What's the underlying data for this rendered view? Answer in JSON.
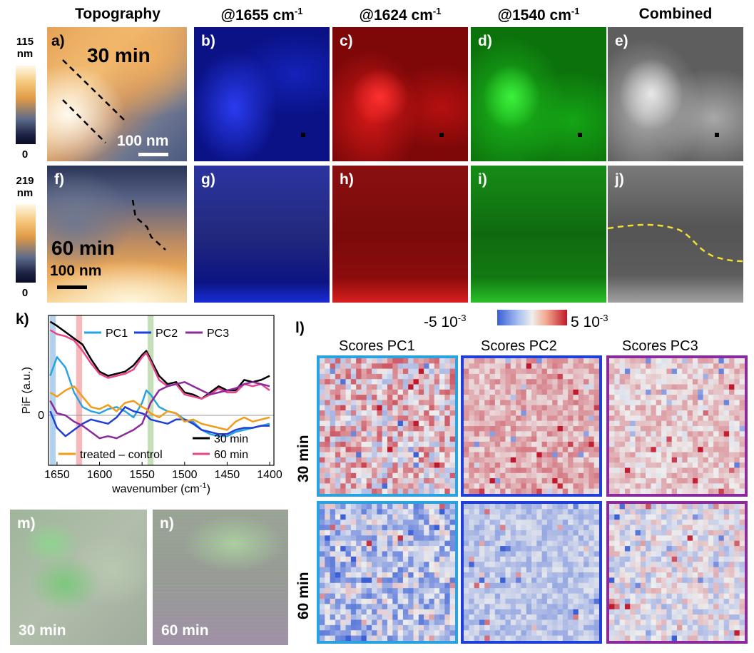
{
  "headers": {
    "topography": "Topography",
    "b1655": "@1655 cm",
    "b1624": "@1624 cm",
    "b1540": "@1540 cm",
    "sup": "-1",
    "combined": "Combined"
  },
  "colorbars": {
    "top": {
      "max": "115",
      "unit": "nm",
      "min": "0"
    },
    "bottom": {
      "max": "219",
      "unit": "nm",
      "min": "0"
    }
  },
  "panels": {
    "a": "a)",
    "b": "b)",
    "c": "c)",
    "d": "d)",
    "e": "e)",
    "f": "f)",
    "g": "g)",
    "h": "h)",
    "i": "i)",
    "j": "j)",
    "k": "k)",
    "l": "l)",
    "m": "m)",
    "n": "n)"
  },
  "topo_a": {
    "time": "30 min",
    "scale": "100 nm"
  },
  "topo_f": {
    "time": "60 min",
    "scale": "100 nm"
  },
  "photos": {
    "m_time": "30 min",
    "n_time": "60 min"
  },
  "scores_colorbar": {
    "min": "-5 10",
    "max": "5 10",
    "exp": "-3",
    "min_color": "#3a5fd6",
    "max_color": "#c0182a"
  },
  "scores": {
    "titles": [
      "Scores PC1",
      "Scores PC2",
      "Scores PC3"
    ],
    "rows": [
      "30 min",
      "60 min"
    ],
    "frame_colors": [
      "#29a3e0",
      "#1f3fd6",
      "#8b2a9a"
    ]
  },
  "chart_data": {
    "type": "line",
    "title": "",
    "xlabel": "wavenumber (cm",
    "xlabel_sup": "-1",
    "xlabel_end": ")",
    "ylabel": "PiF (a.u.)",
    "xlim": [
      1660,
      1395
    ],
    "ylim": [
      -1.2,
      2.4
    ],
    "xticks": [
      1650,
      1600,
      1550,
      1500,
      1450,
      1400
    ],
    "ytick_labels": [
      {
        "value": 0,
        "label": "0"
      }
    ],
    "highlight_bands": [
      {
        "center": 1655,
        "width": 7,
        "color": "#9fc5e8"
      },
      {
        "center": 1624,
        "width": 7,
        "color": "#f4a6a6"
      },
      {
        "center": 1540,
        "width": 7,
        "color": "#b6d7a8"
      }
    ],
    "legend_top": [
      "PC1",
      "PC2",
      "PC3"
    ],
    "legend_bottom": [
      "30 min",
      "treated – control",
      "60 min"
    ],
    "x": [
      1658,
      1650,
      1640,
      1630,
      1620,
      1610,
      1600,
      1590,
      1580,
      1570,
      1560,
      1550,
      1545,
      1540,
      1530,
      1520,
      1510,
      1500,
      1490,
      1480,
      1470,
      1460,
      1450,
      1440,
      1430,
      1420,
      1410,
      1400
    ],
    "series": [
      {
        "name": "30 min",
        "color": "#000000",
        "values": [
          2.25,
          2.15,
          2.0,
          1.85,
          1.7,
          1.35,
          1.05,
          0.95,
          1.0,
          1.05,
          1.2,
          1.45,
          1.55,
          1.35,
          0.95,
          0.75,
          0.8,
          0.55,
          0.5,
          0.4,
          0.55,
          0.7,
          0.6,
          0.6,
          0.85,
          0.8,
          0.85,
          0.95
        ]
      },
      {
        "name": "60 min",
        "color": "#e8458b",
        "values": [
          2.05,
          1.95,
          1.9,
          1.8,
          1.55,
          1.25,
          1.0,
          0.9,
          0.95,
          1.0,
          1.1,
          1.4,
          1.5,
          1.3,
          0.85,
          0.7,
          0.75,
          0.5,
          0.45,
          0.4,
          0.5,
          0.65,
          0.55,
          0.55,
          0.75,
          0.7,
          0.75,
          0.6
        ]
      },
      {
        "name": "PC1",
        "color": "#29a3e0",
        "values": [
          0.95,
          1.4,
          1.15,
          0.55,
          0.2,
          0.1,
          0.05,
          0.15,
          0.2,
          0.1,
          -0.05,
          0.3,
          0.6,
          0.5,
          0.2,
          0.1,
          0.05,
          -0.1,
          -0.15,
          -0.35,
          -0.45,
          -0.5,
          -0.5,
          -0.4,
          -0.35,
          -0.3,
          -0.25,
          -0.2
        ]
      },
      {
        "name": "PC2",
        "color": "#1f3fd6",
        "values": [
          0.1,
          -0.3,
          -0.5,
          -0.35,
          -0.2,
          -0.1,
          -0.15,
          -0.2,
          -0.05,
          0.2,
          0.1,
          0.05,
          0.0,
          -0.1,
          -0.15,
          -0.2,
          -0.1,
          -0.1,
          -0.2,
          -0.35,
          -0.4,
          -0.45,
          -0.45,
          -0.35,
          -0.3,
          -0.3,
          -0.25,
          -0.25
        ]
      },
      {
        "name": "PC3",
        "color": "#8b2a9a",
        "values": [
          0.35,
          0.05,
          0.0,
          -0.15,
          -0.25,
          -0.4,
          -0.55,
          -0.5,
          -0.55,
          -0.45,
          -0.35,
          -0.2,
          0.05,
          0.3,
          0.6,
          0.7,
          0.75,
          0.8,
          0.7,
          0.6,
          0.5,
          0.55,
          0.6,
          0.65,
          0.75,
          0.8,
          0.75,
          0.7
        ]
      },
      {
        "name": "treated – control",
        "color": "#f39c1a",
        "values": [
          0.55,
          0.45,
          0.6,
          0.7,
          0.45,
          0.2,
          0.15,
          0.25,
          0.1,
          0.3,
          0.35,
          0.2,
          0.15,
          0.05,
          -0.05,
          0.1,
          0.05,
          -0.15,
          -0.1,
          -0.2,
          -0.25,
          -0.3,
          -0.35,
          -0.15,
          -0.05,
          -0.15,
          -0.1,
          -0.05
        ]
      }
    ]
  }
}
